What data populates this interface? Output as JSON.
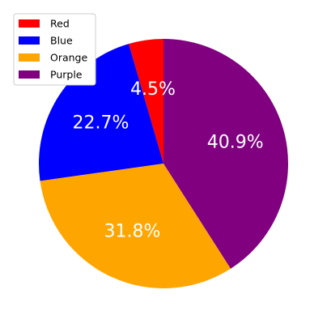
{
  "chart_data": {
    "type": "pie",
    "categories": [
      "Red",
      "Blue",
      "Orange",
      "Purple"
    ],
    "values": [
      4.5,
      22.7,
      31.8,
      40.9
    ],
    "labels": [
      "4.5%",
      "22.7%",
      "31.8%",
      "40.9%"
    ],
    "colors": [
      "#ff0000",
      "#0000ff",
      "#ffa500",
      "#800080"
    ],
    "start_angle_deg": 90,
    "direction": "counterclockwise",
    "legend": {
      "placement": "top-left",
      "entries": [
        "Red",
        "Blue",
        "Orange",
        "Purple"
      ]
    }
  }
}
